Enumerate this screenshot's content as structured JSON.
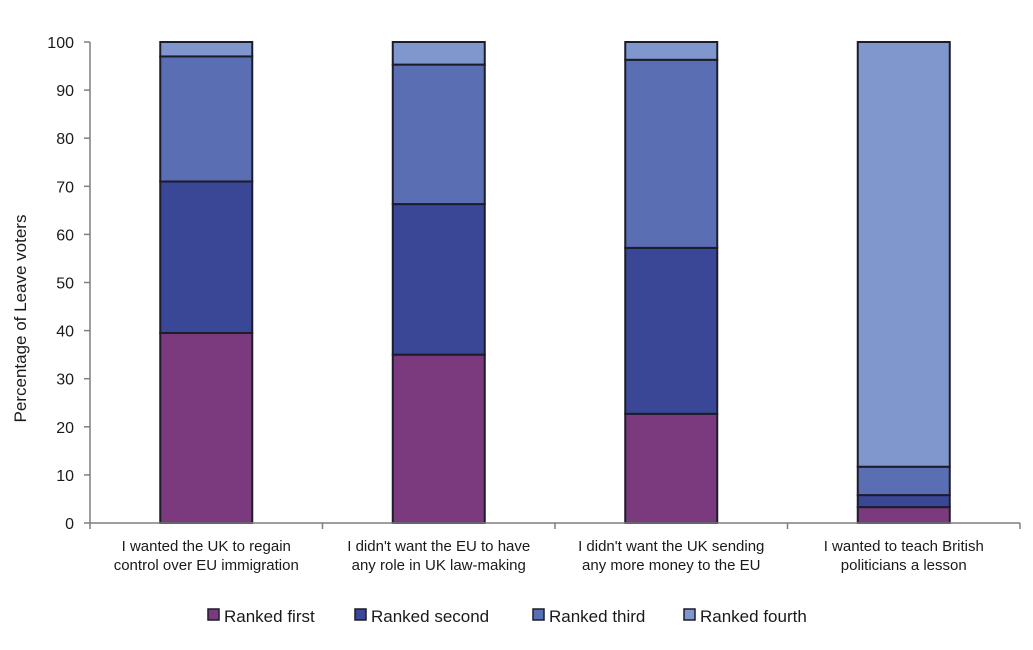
{
  "chart_data": {
    "type": "bar",
    "stacked": true,
    "title": "",
    "xlabel": "",
    "ylabel": "Percentage of Leave voters",
    "ylim": [
      0,
      100
    ],
    "yticks": [
      0,
      10,
      20,
      30,
      40,
      50,
      60,
      70,
      80,
      90,
      100
    ],
    "grid": false,
    "legend_position": "bottom",
    "categories": [
      [
        "I wanted the UK to regain",
        "control over EU immigration"
      ],
      [
        "I didn't want the EU to have",
        "any role in UK law-making"
      ],
      [
        "I didn't want the UK sending",
        "any more money to the EU"
      ],
      [
        "I wanted to teach British",
        "politicians a lesson"
      ]
    ],
    "series": [
      {
        "name": "Ranked first",
        "color": "#7b3a7e",
        "values": [
          39.5,
          35.0,
          22.7,
          3.3
        ]
      },
      {
        "name": "Ranked second",
        "color": "#3a4797",
        "values": [
          31.5,
          31.3,
          34.5,
          2.5
        ]
      },
      {
        "name": "Ranked third",
        "color": "#5a6fb3",
        "values": [
          26.0,
          29.0,
          39.1,
          5.9
        ]
      },
      {
        "name": "Ranked fourth",
        "color": "#8097cd",
        "values": [
          3.0,
          4.7,
          3.7,
          88.3
        ]
      }
    ]
  }
}
